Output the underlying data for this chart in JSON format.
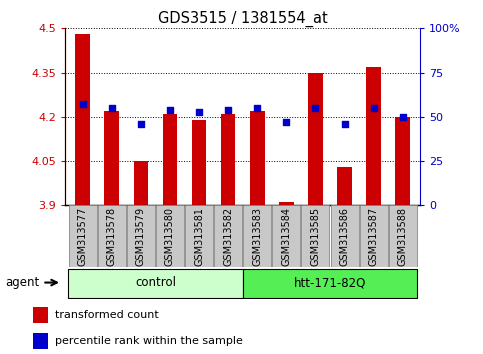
{
  "title": "GDS3515 / 1381554_at",
  "samples": [
    "GSM313577",
    "GSM313578",
    "GSM313579",
    "GSM313580",
    "GSM313581",
    "GSM313582",
    "GSM313583",
    "GSM313584",
    "GSM313585",
    "GSM313586",
    "GSM313587",
    "GSM313588"
  ],
  "transformed_count": [
    4.48,
    4.22,
    4.05,
    4.21,
    4.19,
    4.21,
    4.22,
    3.91,
    4.35,
    4.03,
    4.37,
    4.2
  ],
  "percentile_rank": [
    57,
    55,
    46,
    54,
    53,
    54,
    55,
    47,
    55,
    46,
    55,
    50
  ],
  "y_min": 3.9,
  "y_max": 4.5,
  "y_ticks": [
    3.9,
    4.05,
    4.2,
    4.35,
    4.5
  ],
  "y_tick_labels": [
    "3.9",
    "4.05",
    "4.2",
    "4.35",
    "4.5"
  ],
  "y2_ticks": [
    0,
    25,
    50,
    75,
    100
  ],
  "y2_tick_labels": [
    "0",
    "25",
    "50",
    "75",
    "100%"
  ],
  "bar_color": "#cc0000",
  "dot_color": "#0000cc",
  "bar_bottom": 3.9,
  "groups": [
    {
      "label": "control",
      "start": 0,
      "end": 6,
      "color": "#ccffcc"
    },
    {
      "label": "htt-171-82Q",
      "start": 6,
      "end": 12,
      "color": "#55ee55"
    }
  ],
  "agent_label": "agent",
  "legend_bar_label": "transformed count",
  "legend_dot_label": "percentile rank within the sample",
  "grid_color": "#000000",
  "bg_color": "#ffffff",
  "plot_bg_color": "#ffffff",
  "tick_color_left": "#cc0000",
  "tick_color_right": "#0000cc",
  "bar_width": 0.5,
  "xtick_bg_color": "#c8c8c8",
  "xtick_border_color": "#888888"
}
